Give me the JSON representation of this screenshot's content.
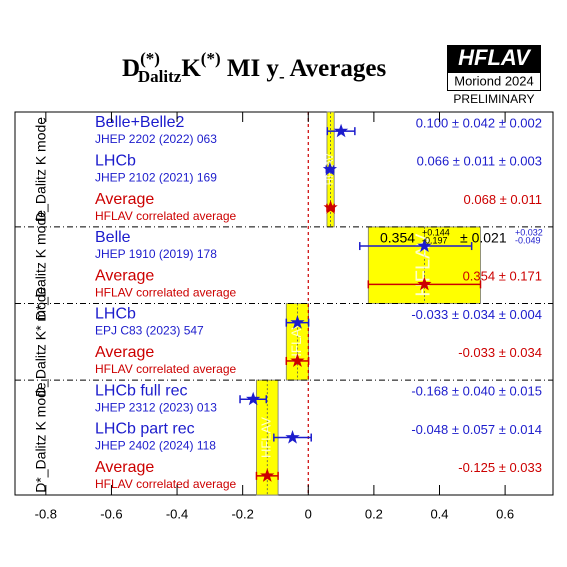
{
  "chart_data": {
    "type": "forest",
    "title_parts": [
      {
        "text": "D",
        "pos": "base"
      },
      {
        "text": "(*)",
        "pos": "sup"
      },
      {
        "text": "Dalitz",
        "pos": "sub"
      },
      {
        "text": "K",
        "pos": "base"
      },
      {
        "text": "(*)",
        "pos": "sup"
      },
      {
        "text": " MI y",
        "pos": "base"
      },
      {
        "text": "-",
        "pos": "sub"
      },
      {
        "text": " Averages",
        "pos": "base"
      }
    ],
    "logo": {
      "title": "HFLAV",
      "subtitle": "Moriond 2024",
      "status": "PRELIMINARY"
    },
    "xlim": [
      -0.894,
      0.746
    ],
    "xticks": [
      -0.8,
      -0.6,
      -0.4,
      -0.2,
      0,
      0.2,
      0.4,
      0.6
    ],
    "zero_line": true,
    "measurement_color": "#1c1ccc",
    "average_color": "#cc0000",
    "band_color": "#ffff00",
    "groups": [
      {
        "label": "D_Dalitz K mode",
        "entries": [
          {
            "name": "Belle+Belle2",
            "ref": "JHEP 2202 (2022) 063",
            "value": 0.1,
            "stat": [
              0.042,
              0.042
            ],
            "value_label": "0.100 ± 0.042 ± 0.002",
            "average": false
          },
          {
            "name": "LHCb",
            "ref": "JHEP 2102 (2021) 169",
            "value": 0.066,
            "stat": [
              0.011,
              0.011
            ],
            "value_label": "0.066 ± 0.011 ± 0.003",
            "average": false
          },
          {
            "name": "Average",
            "ref": "HFLAV correlated average",
            "value": 0.068,
            "stat": [
              0.011,
              0.011
            ],
            "value_label": "0.068 ± 0.011",
            "average": true
          }
        ]
      },
      {
        "label": "D*_Dalitz K mode",
        "entries": [
          {
            "name": "Belle",
            "ref": "JHEP 1910 (2019) 178",
            "value": 0.354,
            "stat": [
              0.197,
              0.144
            ],
            "label_parts": [
              "0.354",
              "+0.144",
              "-0.197",
              "± 0.021",
              "+0.032",
              "-0.049"
            ],
            "average": false
          },
          {
            "name": "Average",
            "ref": "HFLAV correlated average",
            "value": 0.354,
            "stat": [
              0.171,
              0.171
            ],
            "value_label": "0.354 ± 0.171",
            "average": true
          }
        ]
      },
      {
        "label": "D_Dalitz K* mode",
        "entries": [
          {
            "name": "LHCb",
            "ref": "EPJ C83 (2023) 547",
            "value": -0.033,
            "stat": [
              0.034,
              0.034
            ],
            "value_label": "-0.033 ± 0.034 ± 0.004",
            "average": false
          },
          {
            "name": "Average",
            "ref": "HFLAV correlated average",
            "value": -0.033,
            "stat": [
              0.034,
              0.034
            ],
            "value_label": "-0.033 ± 0.034",
            "average": true
          }
        ]
      },
      {
        "label": "D*_Dalitz K mode",
        "entries": [
          {
            "name": "LHCb full rec",
            "ref": "JHEP 2312 (2023) 013",
            "value": -0.168,
            "stat": [
              0.04,
              0.04
            ],
            "value_label": "-0.168 ± 0.040 ± 0.015",
            "average": false
          },
          {
            "name": "LHCb part rec",
            "ref": "JHEP 2402 (2024) 118",
            "value": -0.048,
            "stat": [
              0.057,
              0.057
            ],
            "value_label": "-0.048 ± 0.057 ± 0.014",
            "average": false
          },
          {
            "name": "Average",
            "ref": "HFLAV correlated average",
            "value": -0.125,
            "stat": [
              0.033,
              0.033
            ],
            "value_label": "-0.125 ± 0.033",
            "average": true
          }
        ]
      }
    ]
  }
}
